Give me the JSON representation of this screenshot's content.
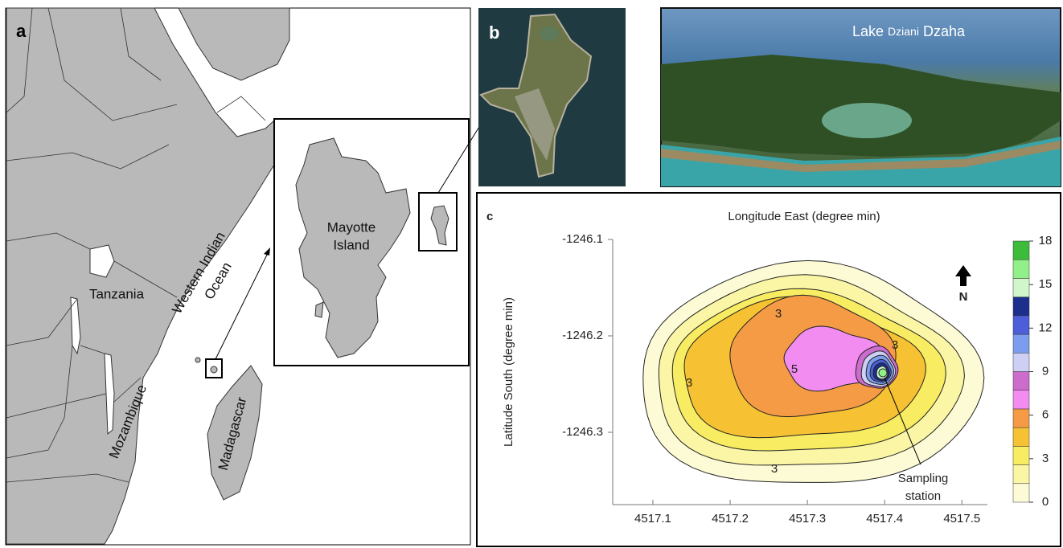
{
  "panel_a": {
    "label": "a",
    "countries": [
      "Tanzania",
      "Mozambique",
      "Madagascar"
    ],
    "ocean": [
      "Western Indian",
      "Ocean"
    ],
    "island": [
      "Mayotte",
      "Island"
    ]
  },
  "panel_b": {
    "label": "b",
    "photo_caption": [
      "Lake",
      "Dziani",
      "Dzaha"
    ]
  },
  "chart_data": {
    "type": "contour",
    "panel_label": "c",
    "title": "Longitude East (degree min)",
    "y_label": "Latitude South (degree min)",
    "xlim": [
      4517.048,
      4517.533
    ],
    "xticks": [
      4517.1,
      4517.2,
      4517.3,
      4517.4,
      4517.5
    ],
    "ylim": [
      -1246.375,
      -1246.1
    ],
    "yticks": [
      -1246.1,
      -1246.2,
      -1246.3
    ],
    "colorbar": {
      "lim": [
        0,
        18
      ],
      "ticks": [
        0,
        3,
        6,
        9,
        12,
        15,
        18
      ],
      "colors": [
        "#fdfbd6",
        "#fbf6a6",
        "#f7ec62",
        "#f6c233",
        "#f59a45",
        "#f28cf0",
        "#cc6ccc",
        "#cdd0f4",
        "#7c9cee",
        "#4c5fd8",
        "#1c2f8c",
        "#d2f6cc",
        "#92f08a",
        "#3dbb3a"
      ]
    },
    "contour_labels": [
      3,
      3,
      3,
      3,
      5
    ],
    "annotation": [
      "Sampling",
      "station"
    ],
    "north_label": "N"
  }
}
